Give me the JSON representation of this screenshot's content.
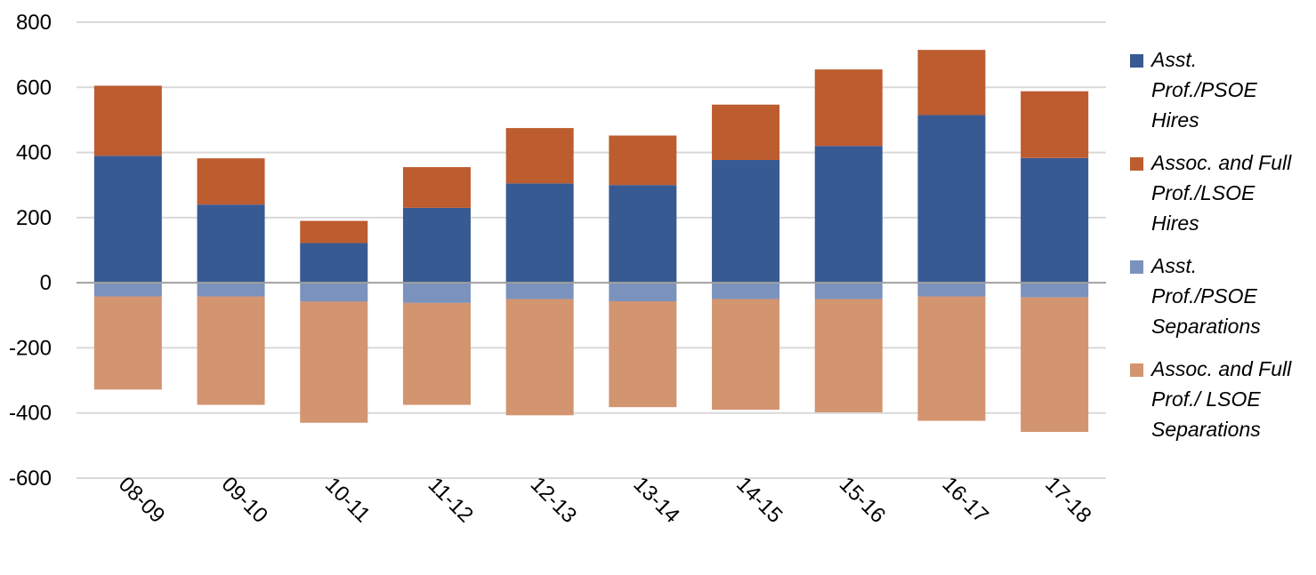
{
  "chart_data": {
    "type": "bar",
    "stacked": true,
    "categories": [
      "08-09",
      "09-10",
      "10-11",
      "11-12",
      "12-13",
      "13-14",
      "14-15",
      "15-16",
      "16-17",
      "17-18"
    ],
    "series": [
      {
        "name": "Asst. Prof./PSOE Hires",
        "color": "#385A93",
        "values": [
          390,
          240,
          122,
          230,
          305,
          300,
          377,
          420,
          515,
          383
        ]
      },
      {
        "name": "Assoc. and Full Prof./LSOE Hires",
        "color": "#BC5C2F",
        "values": [
          215,
          142,
          68,
          125,
          170,
          152,
          170,
          235,
          200,
          205
        ]
      },
      {
        "name": "Asst. Prof./PSOE Separations",
        "color": "#7B92BC",
        "values": [
          -42,
          -42,
          -58,
          -62,
          -50,
          -57,
          -50,
          -50,
          -42,
          -45
        ]
      },
      {
        "name": "Assoc. and Full Prof./ LSOE Separations",
        "color": "#D39470",
        "values": [
          -286,
          -333,
          -372,
          -313,
          -357,
          -325,
          -340,
          -348,
          -382,
          -413
        ]
      }
    ],
    "ylim": [
      -600,
      800
    ],
    "yticks": [
      -600,
      -400,
      -200,
      0,
      200,
      400,
      600,
      800
    ],
    "grid": true,
    "legend_position": "right",
    "axis_color": "#A0A0A0",
    "grid_color": "#D9D9D9"
  },
  "legend": {
    "items": [
      {
        "label": "Asst.\nProf./PSOE\nHires"
      },
      {
        "label": "Assoc. and Full\nProf./LSOE\nHires"
      },
      {
        "label": "Asst.\nProf./PSOE\nSeparations"
      },
      {
        "label": "Assoc. and Full\nProf./ LSOE\nSeparations"
      }
    ]
  }
}
